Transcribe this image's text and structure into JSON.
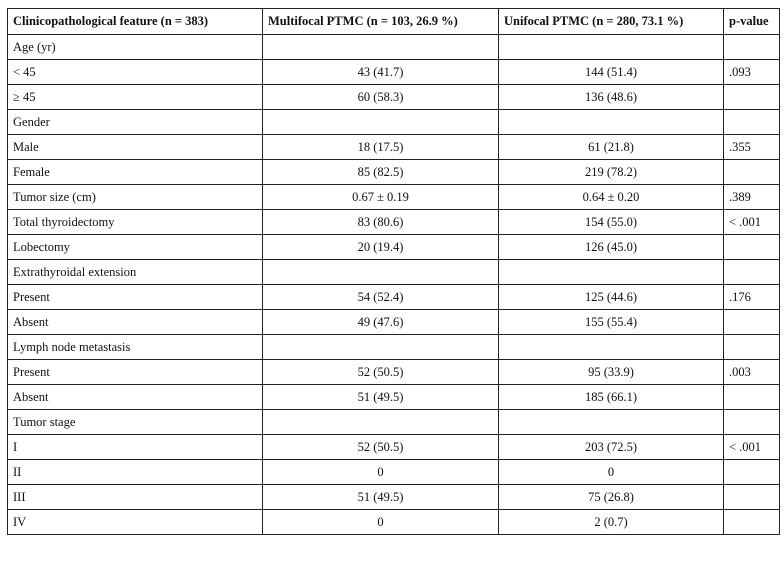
{
  "headers": [
    "Clinicopathological feature (n = 383)",
    "Multifocal PTMC (n = 103, 26.9 %)",
    "Unifocal PTMC (n = 280, 73.1 %)",
    "p-value"
  ],
  "rows": [
    [
      "Age (yr)",
      "",
      "",
      ""
    ],
    [
      "< 45",
      "43 (41.7)",
      "144 (51.4)",
      ".093"
    ],
    [
      "≥ 45",
      "60 (58.3)",
      "136 (48.6)",
      ""
    ],
    [
      "Gender",
      "",
      "",
      ""
    ],
    [
      "Male",
      "18 (17.5)",
      "61 (21.8)",
      ".355"
    ],
    [
      "Female",
      "85 (82.5)",
      "219 (78.2)",
      ""
    ],
    [
      "Tumor size (cm)",
      "0.67 ± 0.19",
      "0.64 ± 0.20",
      ".389"
    ],
    [
      "Total thyroidectomy",
      "83 (80.6)",
      "154 (55.0)",
      "< .001"
    ],
    [
      "Lobectomy",
      "20 (19.4)",
      "126 (45.0)",
      ""
    ],
    [
      "Extrathyroidal extension",
      "",
      "",
      ""
    ],
    [
      "Present",
      "54 (52.4)",
      "125 (44.6)",
      ".176"
    ],
    [
      "Absent",
      "49 (47.6)",
      "155 (55.4)",
      ""
    ],
    [
      "Lymph node metastasis",
      "",
      "",
      ""
    ],
    [
      "Present",
      "52 (50.5)",
      "95 (33.9)",
      ".003"
    ],
    [
      "Absent",
      "51 (49.5)",
      "185 (66.1)",
      ""
    ],
    [
      "Tumor stage",
      "",
      "",
      ""
    ],
    [
      "I",
      "52 (50.5)",
      "203 (72.5)",
      "< .001"
    ],
    [
      "II",
      "0",
      "0",
      ""
    ],
    [
      "III",
      "51 (49.5)",
      "75 (26.8)",
      ""
    ],
    [
      "IV",
      "0",
      "2 (0.7)",
      ""
    ]
  ]
}
